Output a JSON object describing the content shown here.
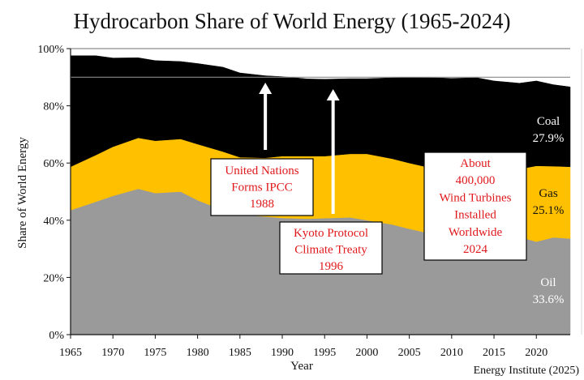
{
  "chart_data": {
    "type": "area",
    "stacked": true,
    "title": "Hydrocarbon Share of World Energy (1965-2024)",
    "xlabel": "Year",
    "ylabel": "Share of World Energy",
    "source": "Energy Institute (2025)",
    "xlim": [
      1965,
      2024
    ],
    "ylim": [
      0,
      100
    ],
    "x_ticks": [
      1965,
      1970,
      1975,
      1980,
      1985,
      1990,
      1995,
      2000,
      2005,
      2010,
      2015,
      2020
    ],
    "x_tick_labels": [
      "1965",
      "1970",
      "1975",
      "1980",
      "1985",
      "1990",
      "1995",
      "2000",
      "2005",
      "2010",
      "2015",
      "2020"
    ],
    "y_ticks": [
      0,
      20,
      40,
      60,
      80,
      100
    ],
    "y_tick_labels": [
      "0%",
      "20%",
      "40%",
      "60%",
      "80%",
      "100%"
    ],
    "grid": false,
    "x": [
      1965,
      1968,
      1970,
      1973,
      1975,
      1978,
      1980,
      1983,
      1985,
      1988,
      1990,
      1993,
      1995,
      1998,
      2000,
      2003,
      2005,
      2008,
      2010,
      2013,
      2015,
      2018,
      2020,
      2022,
      2024
    ],
    "series": [
      {
        "name": "Oil",
        "color": "#9a9a9a",
        "end_label": "33.6%",
        "values": [
          43.5,
          46.5,
          48.5,
          51.0,
          49.5,
          50.0,
          47.0,
          43.5,
          42.0,
          41.3,
          40.8,
          40.5,
          40.7,
          41.0,
          40.0,
          38.5,
          37.0,
          35.0,
          34.0,
          34.2,
          33.5,
          34.2,
          32.5,
          34.0,
          33.6
        ]
      },
      {
        "name": "Gas",
        "color": "#ffc000",
        "end_label": "25.1%",
        "values": [
          15.2,
          16.3,
          17.2,
          17.8,
          18.3,
          18.4,
          19.6,
          20.5,
          20.0,
          20.5,
          21.6,
          21.9,
          21.7,
          22.2,
          23.2,
          23.0,
          23.0,
          23.0,
          24.5,
          23.9,
          24.0,
          23.7,
          26.5,
          24.9,
          25.1
        ]
      },
      {
        "name": "Coal",
        "color": "#000000",
        "end_label": "27.9%",
        "values": [
          38.8,
          34.7,
          31.0,
          28.0,
          28.0,
          27.1,
          28.2,
          29.5,
          29.5,
          28.7,
          27.8,
          27.0,
          26.9,
          26.3,
          26.3,
          28.3,
          29.9,
          31.8,
          31.1,
          31.7,
          31.2,
          30.0,
          29.7,
          28.5,
          27.9
        ]
      }
    ],
    "reference_lines": [
      90,
      100
    ],
    "annotations": [
      {
        "id": "ipcc",
        "lines": [
          "United Nations",
          "Forms IPCC",
          "1988"
        ],
        "year": 1988
      },
      {
        "id": "kyoto",
        "lines": [
          "Kyoto Protocol",
          "Climate Treaty",
          "1996"
        ],
        "year": 1996
      },
      {
        "id": "wind",
        "lines": [
          "About",
          "400,000",
          "Wind Turbines",
          "Installed",
          "Worldwide",
          "2024"
        ]
      }
    ]
  }
}
